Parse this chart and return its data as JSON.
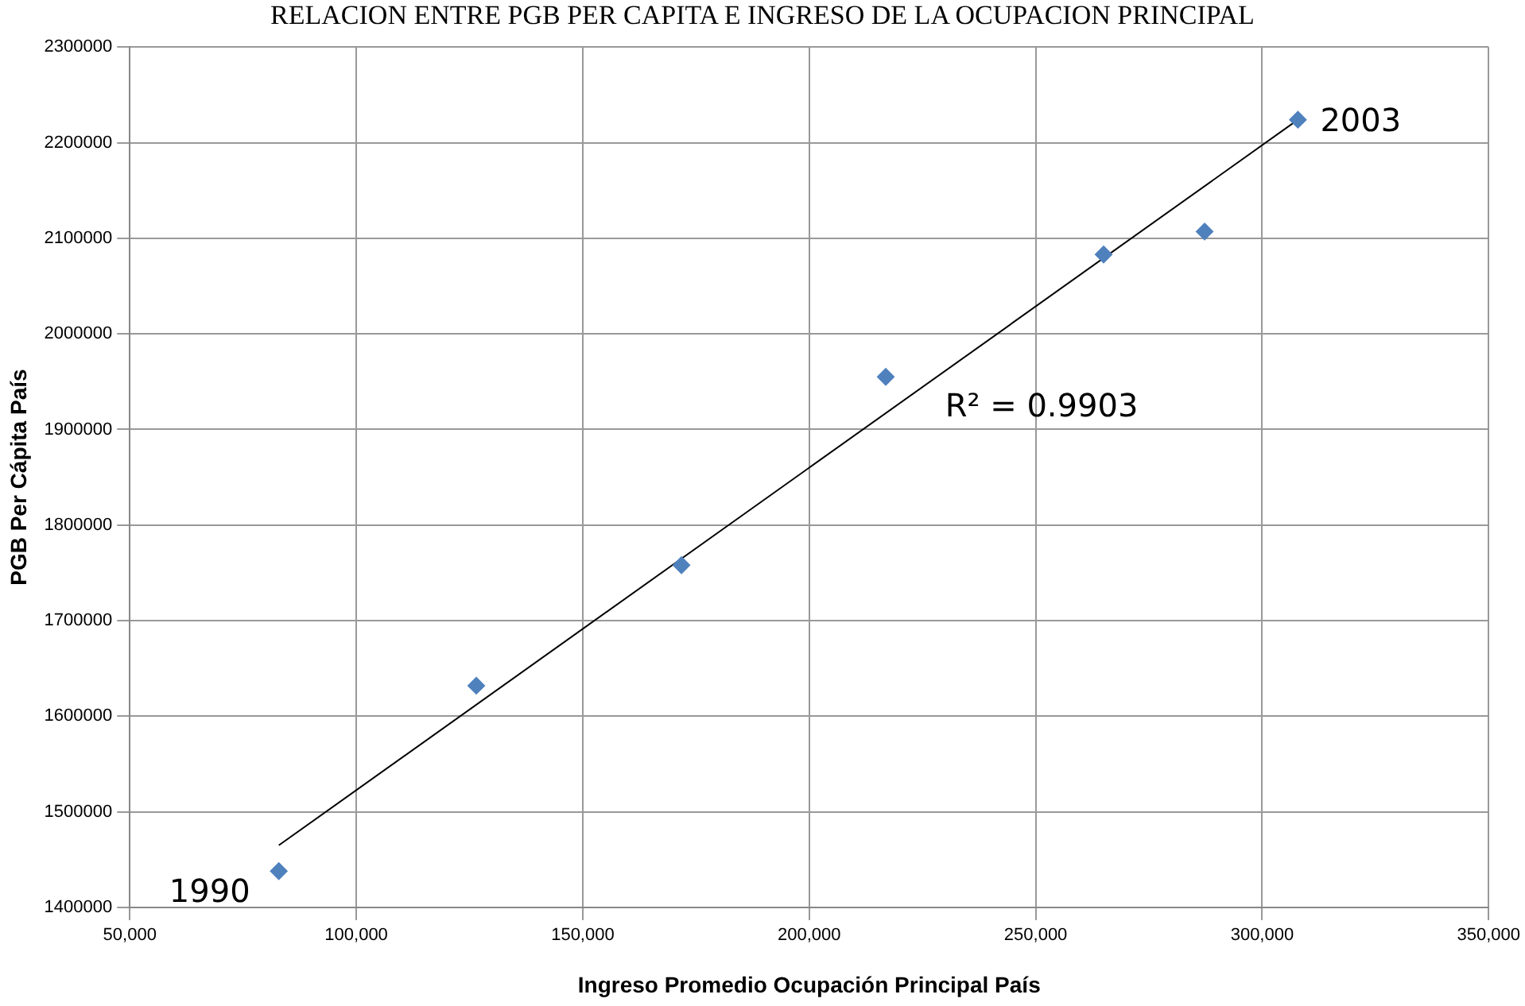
{
  "chart_data": {
    "type": "scatter",
    "title": "RELACION ENTRE PGB PER CAPITA E INGRESO DE LA OCUPACION PRINCIPAL",
    "xlabel": "Ingreso Promedio Ocupación Principal País",
    "ylabel": "PGB Per Cápita País",
    "series": [
      {
        "type": "scatter",
        "color": "#4f81bd",
        "marker": "diamond",
        "x": [
          82900,
          126500,
          171800,
          216900,
          265000,
          287300,
          307900
        ],
        "values": [
          1438000,
          1632000,
          1758000,
          1955000,
          2083000,
          2107000,
          2224000
        ]
      },
      {
        "type": "line",
        "color": "#000000",
        "marker": "none",
        "line_style": "solid",
        "x": [
          82900,
          307900
        ],
        "values": [
          1465000,
          2224000
        ]
      }
    ],
    "xlim": [
      50000,
      350000
    ],
    "xticks": [
      {
        "value": 50000,
        "label": "50,000"
      },
      {
        "value": 100000,
        "label": "100,000"
      },
      {
        "value": 150000,
        "label": "150,000"
      },
      {
        "value": 200000,
        "label": "200,000"
      },
      {
        "value": 250000,
        "label": "250,000"
      },
      {
        "value": 300000,
        "label": "300,000"
      },
      {
        "value": 350000,
        "label": "350,000"
      }
    ],
    "ylim": [
      1400000,
      2300000
    ],
    "yticks": [
      1400000,
      1500000,
      1600000,
      1700000,
      1800000,
      1900000,
      2000000,
      2100000,
      2200000,
      2300000
    ],
    "grid": true,
    "legend": false,
    "annotations": [
      {
        "text": "1990",
        "x": 82900,
        "y": 1438000
      },
      {
        "text": "2003",
        "x": 307900,
        "y": 2224000
      },
      "R² = 0.9903"
    ]
  }
}
